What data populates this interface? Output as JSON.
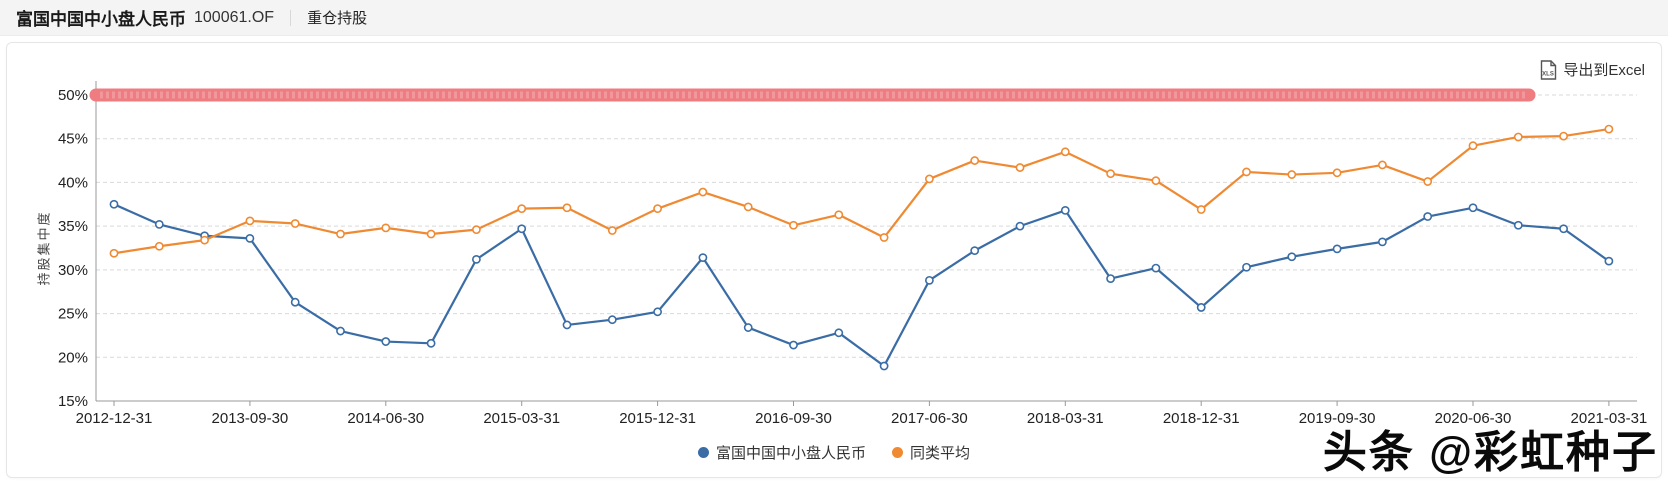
{
  "header": {
    "fund_name": "富国中国中小盘人民币",
    "fund_code": "100061.OF",
    "tab_label": "重仓持股"
  },
  "toolbar": {
    "export_label": "导出到Excel",
    "xls_icon_text": "XLS"
  },
  "watermark": "头条 @彩虹种子",
  "chart_data": {
    "type": "line",
    "title": "",
    "xlabel": "",
    "ylabel": "持股集中度",
    "ylim": [
      15,
      50
    ],
    "yticks": [
      15,
      20,
      25,
      30,
      35,
      40,
      45,
      50
    ],
    "ytick_suffix": "%",
    "grid": "horizontal-dashed",
    "legend_position": "bottom-center",
    "x": [
      "2012-12-31",
      "2013-03-31",
      "2013-06-30",
      "2013-09-30",
      "2013-12-31",
      "2014-03-31",
      "2014-06-30",
      "2014-09-30",
      "2014-12-31",
      "2015-03-31",
      "2015-06-30",
      "2015-09-30",
      "2015-12-31",
      "2016-03-31",
      "2016-06-30",
      "2016-09-30",
      "2016-12-31",
      "2017-03-31",
      "2017-06-30",
      "2017-09-30",
      "2017-12-31",
      "2018-03-31",
      "2018-06-30",
      "2018-09-30",
      "2018-12-31",
      "2019-03-31",
      "2019-06-30",
      "2019-09-30",
      "2019-12-31",
      "2020-03-31",
      "2020-06-30",
      "2020-09-30",
      "2020-12-31",
      "2021-03-31"
    ],
    "x_axis_labels": [
      "2012-12-31",
      "2013-09-30",
      "2014-06-30",
      "2015-03-31",
      "2015-12-31",
      "2016-09-30",
      "2017-06-30",
      "2018-03-31",
      "2018-12-31",
      "2019-09-30",
      "2020-06-30",
      "2021-03-31"
    ],
    "x_label_indices": [
      0,
      3,
      6,
      9,
      12,
      15,
      18,
      21,
      24,
      27,
      30,
      33
    ],
    "series": [
      {
        "name": "富国中国中小盘人民币",
        "color": "#3a6ca5",
        "values": [
          37.5,
          35.2,
          33.9,
          33.6,
          26.3,
          23.0,
          21.8,
          21.6,
          31.2,
          34.7,
          23.7,
          24.3,
          25.2,
          31.4,
          23.4,
          21.4,
          22.8,
          19.0,
          28.8,
          32.2,
          35.0,
          36.8,
          29.0,
          30.2,
          25.7,
          30.3,
          31.5,
          32.4,
          33.2,
          36.1,
          37.1,
          35.1,
          34.7,
          31.0
        ]
      },
      {
        "name": "同类平均",
        "color": "#ef8a33",
        "values": [
          31.9,
          32.7,
          33.4,
          35.6,
          35.3,
          34.1,
          34.8,
          34.1,
          34.6,
          37.0,
          37.1,
          34.5,
          37.0,
          38.9,
          37.2,
          35.1,
          36.3,
          33.7,
          40.4,
          42.5,
          41.7,
          43.5,
          41.0,
          40.2,
          36.9,
          41.2,
          40.9,
          41.1,
          42.0,
          40.1,
          44.2,
          45.2,
          45.3,
          46.1
        ]
      }
    ],
    "limit_band": {
      "value": 50,
      "color": "#ee7c80"
    },
    "colors": {
      "grid": "#d9d9d9",
      "axis": "#999999",
      "tick_text": "#222222"
    }
  }
}
